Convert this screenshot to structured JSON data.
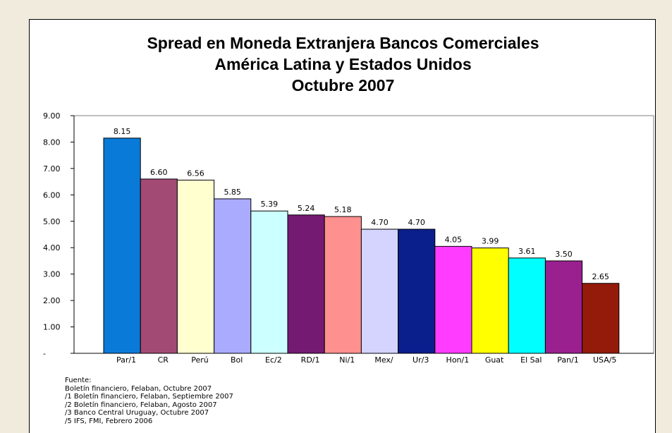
{
  "chart_data": {
    "type": "bar",
    "title": "Spread en Moneda Extranjera Bancos Comerciales",
    "subtitle": "América Latina y Estados Unidos",
    "subtitle2": "Octubre 2007",
    "categories": [
      "Par/1",
      "CR",
      "Perú",
      "Bol",
      "Ec/2",
      "RD/1",
      "Ni/1",
      "Mex/",
      "Ur/3",
      "Hon/1",
      "Guat",
      "El Sal",
      "Pan/1",
      "USA/5"
    ],
    "values": [
      8.15,
      6.6,
      6.56,
      5.85,
      5.39,
      5.24,
      5.18,
      4.7,
      4.7,
      4.05,
      3.99,
      3.61,
      3.5,
      2.65
    ],
    "value_labels": [
      "8.15",
      "6.60",
      "6.56",
      "5.85",
      "5.39",
      "5.24",
      "5.18",
      "4.70",
      "4.70",
      "4.05",
      "3.99",
      "3.61",
      "3.50",
      "2.65"
    ],
    "colors": [
      "#0a7ad8",
      "#a34a74",
      "#ffffd0",
      "#aaaaff",
      "#ccffff",
      "#741a72",
      "#ff9090",
      "#d4d4ff",
      "#0a1e8c",
      "#ff3cff",
      "#ffff00",
      "#00ffff",
      "#9a2090",
      "#941a0a"
    ],
    "ytick_labels": [
      "-",
      "1.00",
      "2.00",
      "3.00",
      "4.00",
      "5.00",
      "6.00",
      "7.00",
      "8.00",
      "9.00"
    ],
    "ylim": [
      0,
      9
    ],
    "xlabel": "",
    "ylabel": "",
    "grid": false,
    "legend": false
  },
  "sources": {
    "heading": "Fuente:",
    "lines": [
      "Boletín financiero, Felaban, Octubre 2007",
      "/1 Boletín financiero, Felaban, Septiembre 2007",
      "/2 Boletín financiero, Felaban, Agosto 2007",
      "/3 Banco Central Uruguay, Octubre 2007",
      "/5 IFS, FMI, Febrero 2006"
    ]
  }
}
